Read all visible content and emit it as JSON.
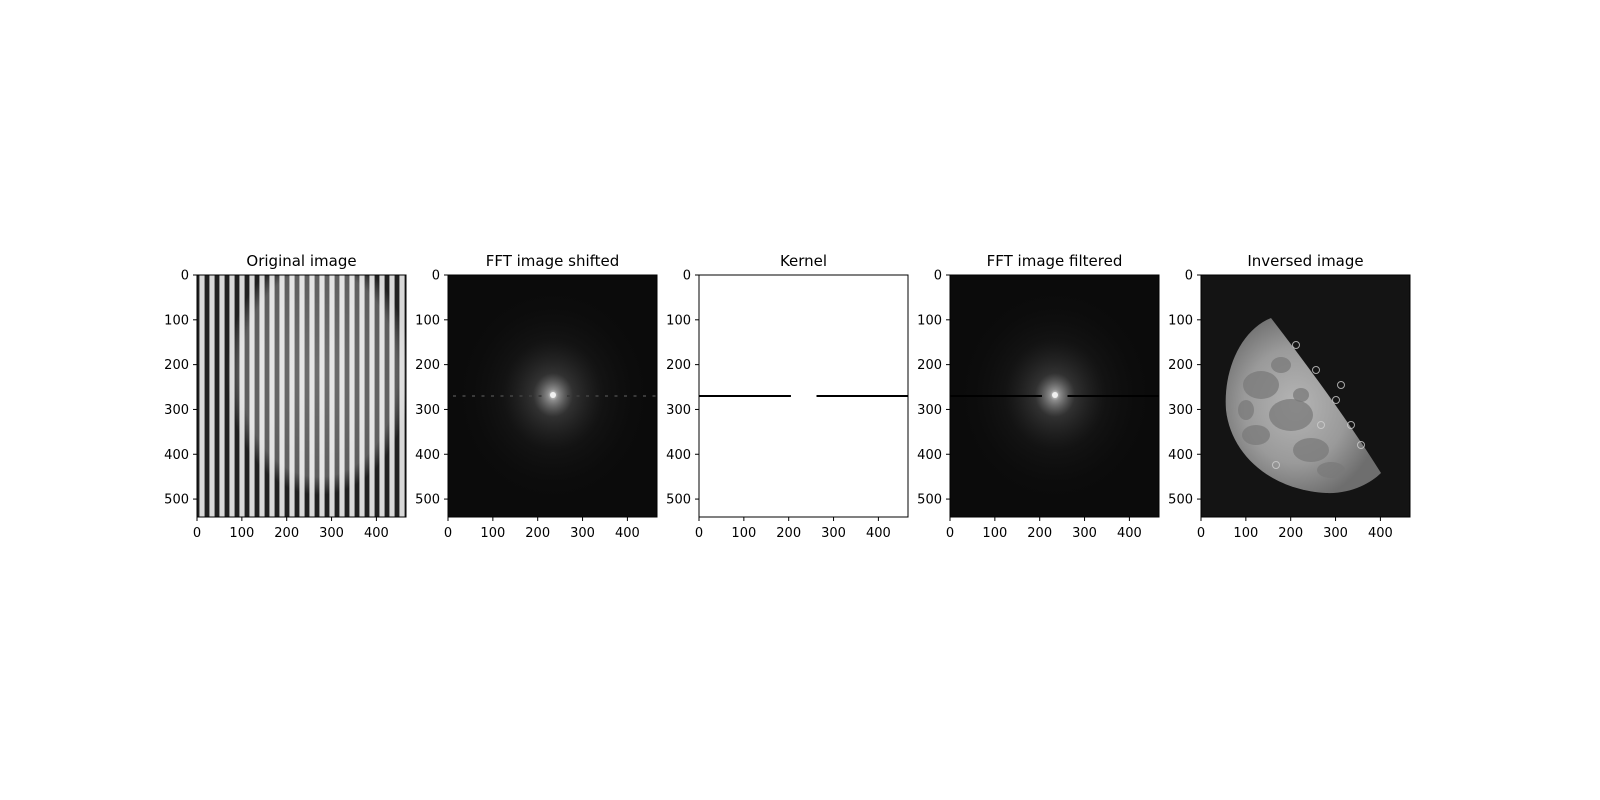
{
  "figure": {
    "panels": [
      {
        "name": "original-image",
        "title": "Original image",
        "content": "striped-moon",
        "x_ticks": [
          "0",
          "100",
          "200",
          "300",
          "400"
        ],
        "y_ticks": [
          "0",
          "100",
          "200",
          "300",
          "400",
          "500"
        ]
      },
      {
        "name": "fft-image-shifted",
        "title": "FFT image shifted",
        "content": "fft-spectrum",
        "x_ticks": [
          "0",
          "100",
          "200",
          "300",
          "400"
        ],
        "y_ticks": [
          "0",
          "100",
          "200",
          "300",
          "400",
          "500"
        ]
      },
      {
        "name": "kernel",
        "title": "Kernel",
        "content": "kernel-mask",
        "x_ticks": [
          "0",
          "100",
          "200",
          "300",
          "400"
        ],
        "y_ticks": [
          "0",
          "100",
          "200",
          "300",
          "400",
          "500"
        ]
      },
      {
        "name": "fft-image-filtered",
        "title": "FFT image filtered",
        "content": "fft-filtered",
        "x_ticks": [
          "0",
          "100",
          "200",
          "300",
          "400"
        ],
        "y_ticks": [
          "0",
          "100",
          "200",
          "300",
          "400",
          "500"
        ]
      },
      {
        "name": "inversed-image",
        "title": "Inversed image",
        "content": "moon",
        "x_ticks": [
          "0",
          "100",
          "200",
          "300",
          "400"
        ],
        "y_ticks": [
          "0",
          "100",
          "200",
          "300",
          "400",
          "500"
        ]
      }
    ],
    "image_extent": {
      "width": 466,
      "height": 540
    },
    "tick_values_x": [
      0,
      100,
      200,
      300,
      400
    ],
    "tick_values_y": [
      0,
      100,
      200,
      300,
      400,
      500
    ],
    "kernel": {
      "stop_band_row": 270,
      "gap_start": 205,
      "gap_end": 262
    },
    "colors": {
      "background": "#ffffff",
      "axis": "#000000",
      "image_black": "#0b0b0b"
    }
  }
}
